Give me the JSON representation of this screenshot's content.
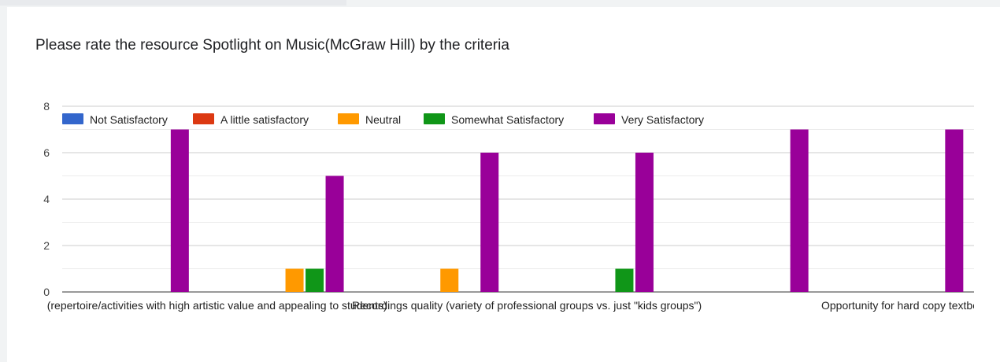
{
  "header": {
    "title_fragment": "...spotlight..."
  },
  "question": {
    "title": "Please rate the resource Spotlight on Music(McGraw Hill) by the criteria"
  },
  "chart_data": {
    "type": "bar",
    "title": "Please rate the resource Spotlight on Music(McGraw Hill) by the criteria",
    "xlabel": "",
    "ylabel": "",
    "ylim": [
      0,
      8
    ],
    "yticks": [
      0,
      2,
      4,
      6,
      8
    ],
    "grid": true,
    "legend_position": "top",
    "categories": [
      "(repertoire/activities with high artistic value and appealing to students)",
      "",
      "Recordings quality (variety of professional groups vs. just \"kids groups\")",
      "",
      "",
      "Opportunity for hard copy textbo"
    ],
    "series": [
      {
        "name": "Not Satisfactory",
        "color": "#3366cc",
        "values": [
          0,
          0,
          0,
          0,
          0,
          0
        ]
      },
      {
        "name": "A little satisfactory",
        "color": "#dc3912",
        "values": [
          0,
          0,
          0,
          0,
          0,
          0
        ]
      },
      {
        "name": "Neutral",
        "color": "#ff9900",
        "values": [
          0,
          1,
          1,
          0,
          0,
          0
        ]
      },
      {
        "name": "Somewhat Satisfactory",
        "color": "#109618",
        "values": [
          0,
          1,
          0,
          1,
          0,
          0
        ]
      },
      {
        "name": "Very Satisfactory",
        "color": "#990099",
        "values": [
          7,
          5,
          6,
          6,
          7,
          7
        ]
      }
    ]
  }
}
